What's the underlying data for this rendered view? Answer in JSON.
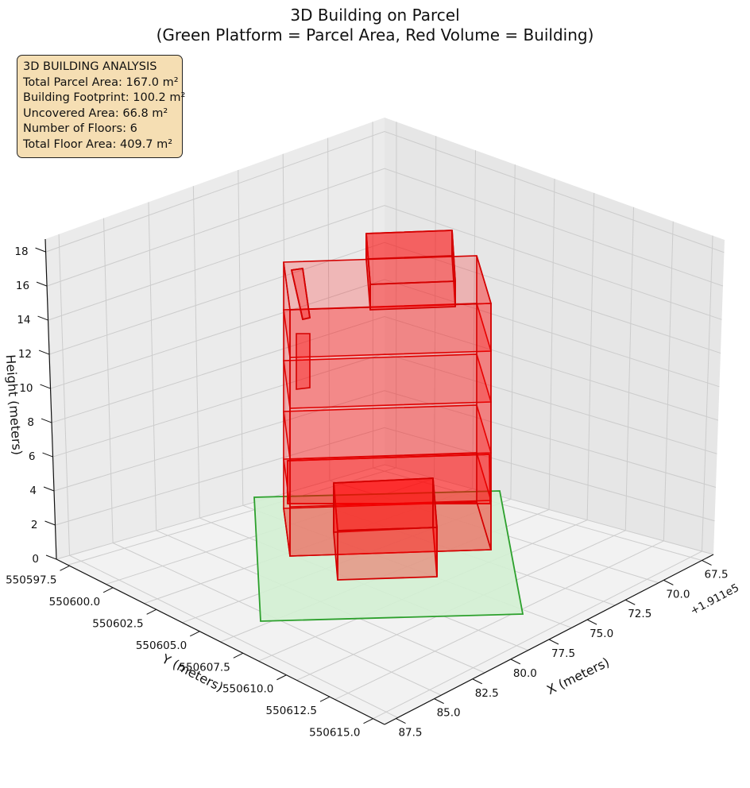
{
  "title": {
    "line1": "3D Building on Parcel",
    "line2": "(Green Platform = Parcel Area, Red Volume = Building)"
  },
  "info_box": {
    "heading": "3D BUILDING ANALYSIS",
    "lines": [
      "Total Parcel Area: 167.0 m²",
      "Building Footprint: 100.2 m²",
      "Uncovered Area: 66.8 m²",
      "Number of Floors: 6",
      "Total Floor Area: 409.7 m²"
    ]
  },
  "colors": {
    "parcel_fill": "#d3f0d3",
    "parcel_edge": "#2ca02c",
    "building_fill": "#ff0000",
    "building_edge": "#d40000",
    "info_box_bg": "#f5deb3",
    "pane": "#f2f2f2",
    "grid": "#cccccc"
  },
  "chart_data": {
    "type": "3d-volume",
    "title": "3D Building on Parcel\n(Green Platform = Parcel Area, Red Volume = Building)",
    "xlabel": "X (meters)",
    "ylabel": "Y (meters)",
    "zlabel": "Height (meters)",
    "x_offset_label": "+1.911e5",
    "x_ticks": [
      "67.5",
      "70.0",
      "72.5",
      "75.0",
      "77.5",
      "80.0",
      "82.5",
      "85.0",
      "87.5"
    ],
    "y_ticks": [
      "550597.5",
      "550600.0",
      "550602.5",
      "550605.0",
      "550607.5",
      "550610.0",
      "550612.5",
      "550615.0"
    ],
    "z_ticks": [
      "0",
      "2",
      "4",
      "6",
      "8",
      "10",
      "12",
      "14",
      "16",
      "18"
    ],
    "zlim": [
      0,
      18
    ],
    "grid": true,
    "parcel": {
      "name": "Parcel Area",
      "area_m2": 167.0,
      "height": 0
    },
    "building": {
      "name": "Building",
      "footprint_m2": 100.2,
      "floors": 6,
      "total_floor_area_m2": 409.7,
      "top_height_approx": 17
    },
    "uncovered_area_m2": 66.8
  }
}
